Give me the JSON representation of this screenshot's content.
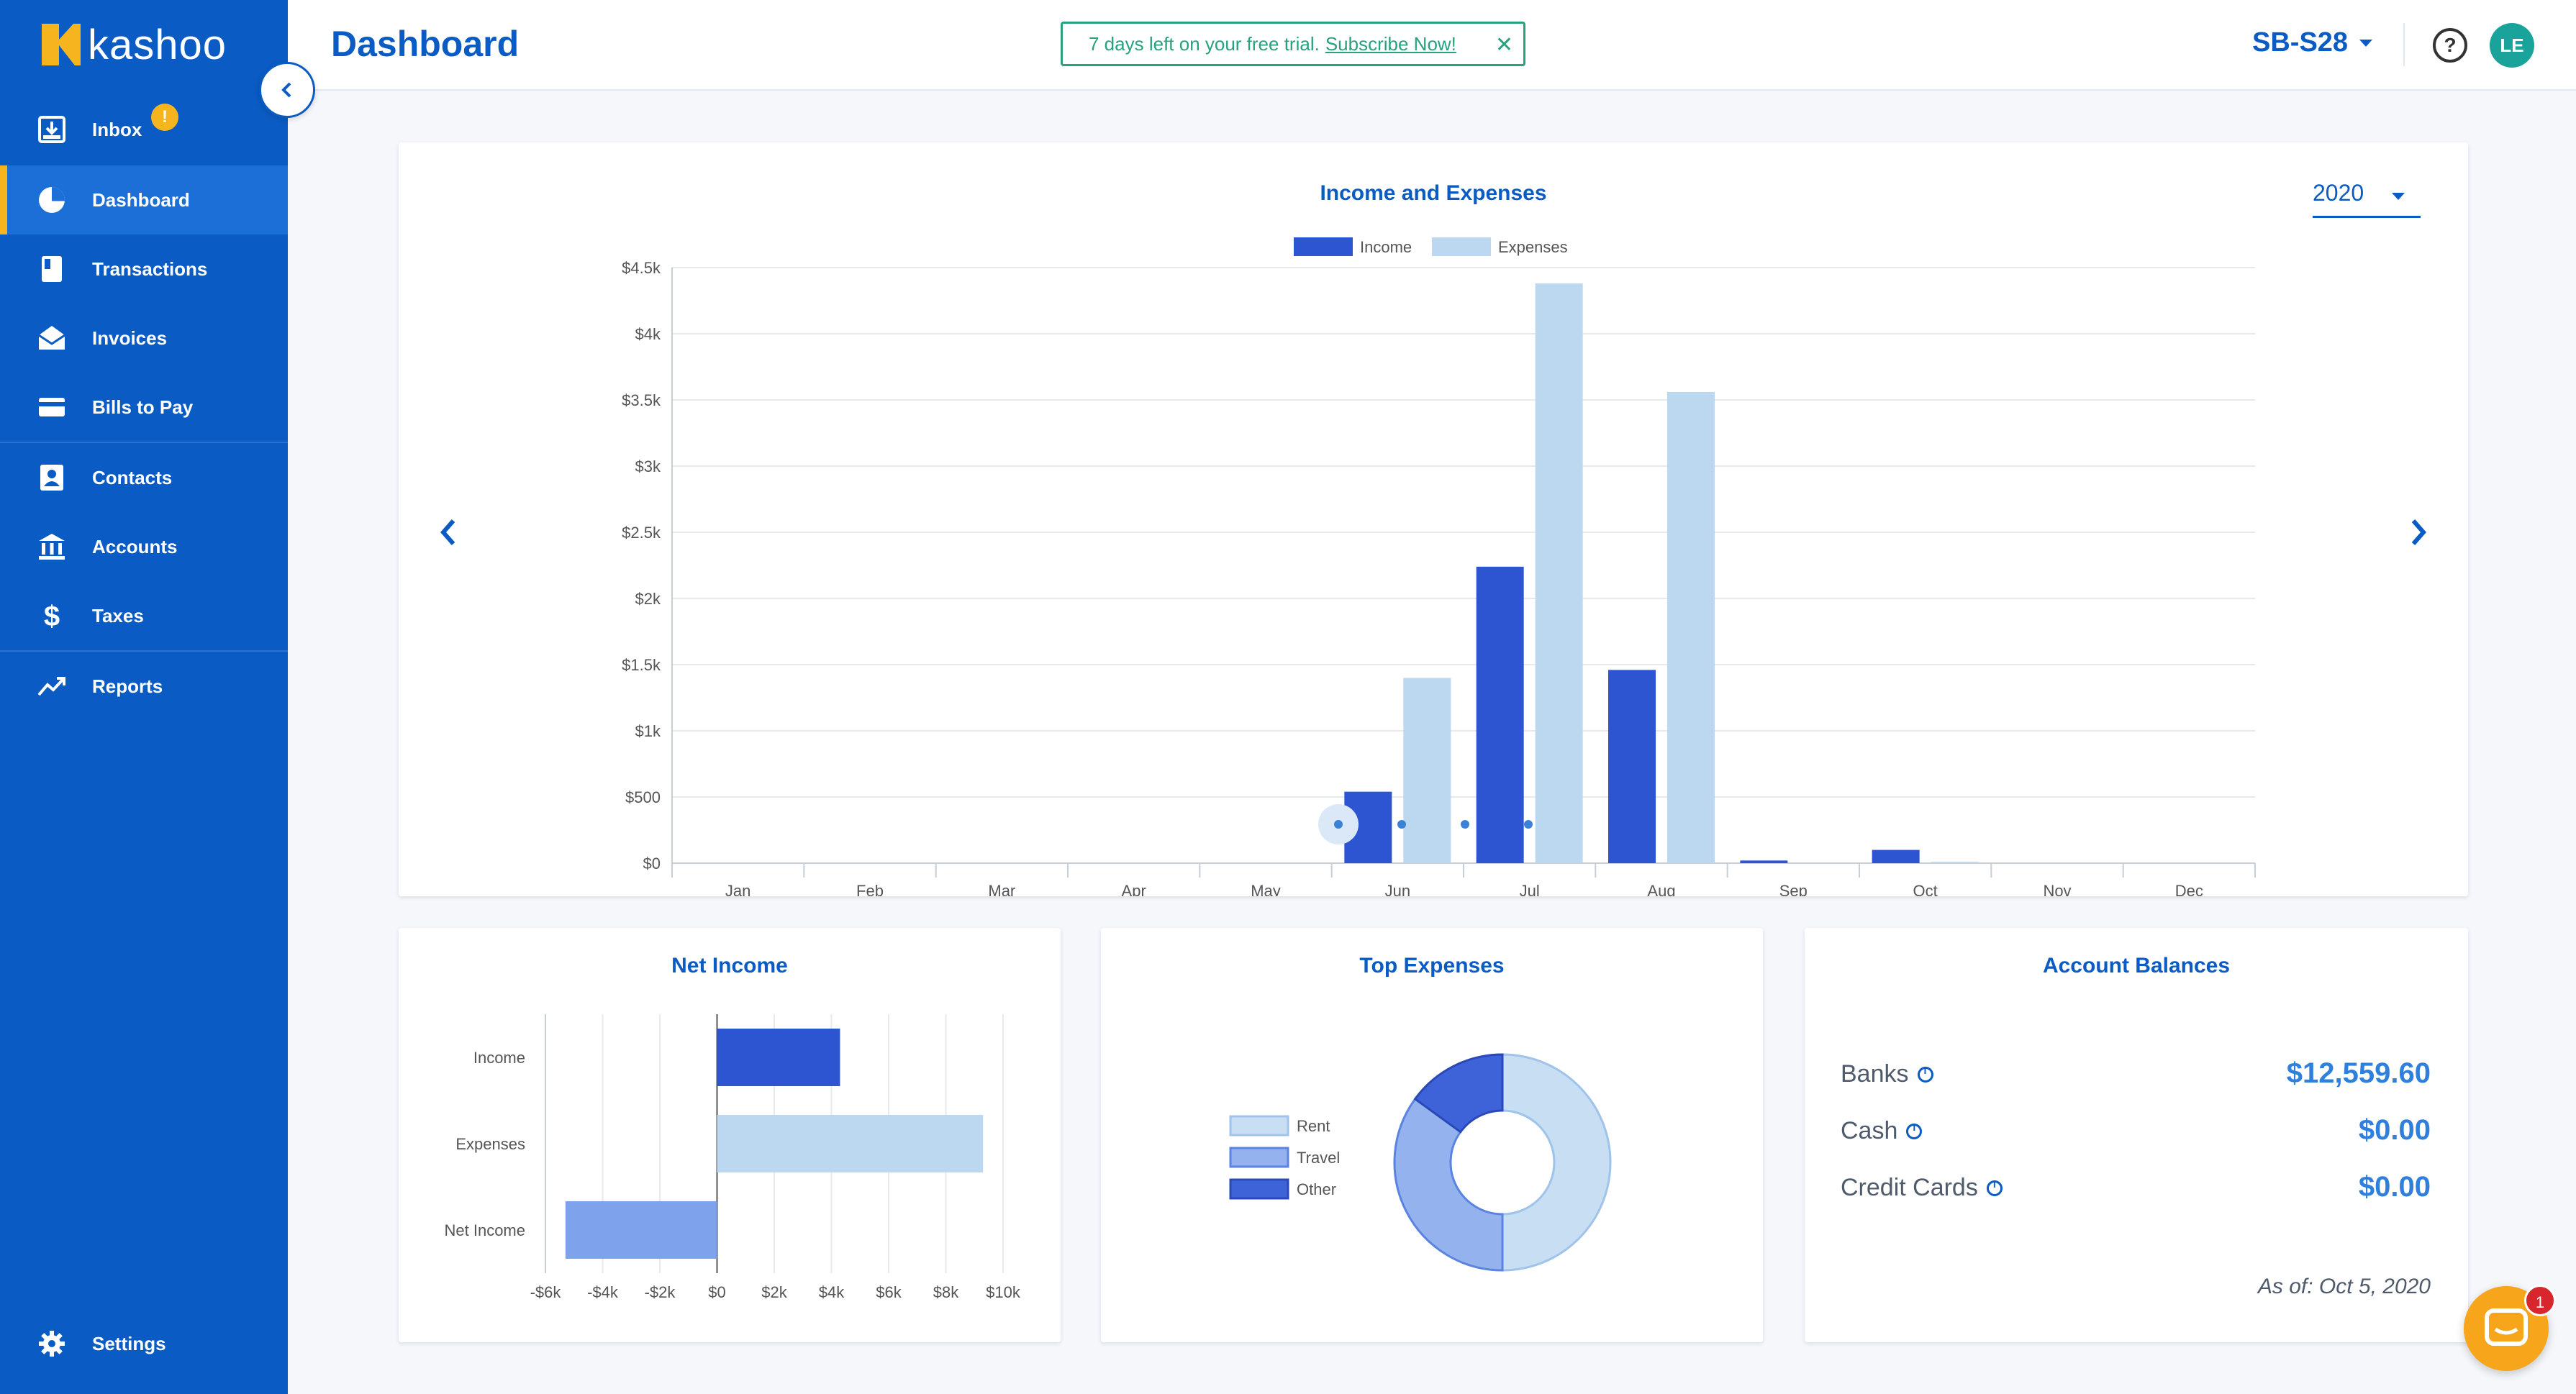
{
  "app": {
    "logo_text": "kashoo"
  },
  "sidebar": {
    "items": [
      {
        "label": "Inbox",
        "badge": "!"
      },
      {
        "label": "Dashboard"
      },
      {
        "label": "Transactions"
      },
      {
        "label": "Invoices"
      },
      {
        "label": "Bills to Pay"
      },
      {
        "label": "Contacts"
      },
      {
        "label": "Accounts"
      },
      {
        "label": "Taxes"
      },
      {
        "label": "Reports"
      }
    ],
    "settings_label": "Settings",
    "active": "Dashboard"
  },
  "header": {
    "title": "Dashboard",
    "trial_text": "7 days left on your free trial.",
    "trial_link": "Subscribe Now!",
    "company": "SB-S28",
    "avatar_initials": "LE"
  },
  "income_expenses": {
    "title": "Income and Expenses",
    "year": "2020",
    "carousel_pages": 4,
    "carousel_active": 1
  },
  "net_income": {
    "title": "Net Income"
  },
  "top_expenses": {
    "title": "Top Expenses"
  },
  "account_balances": {
    "title": "Account Balances",
    "rows": [
      {
        "label": "Banks",
        "value": "$12,559.60"
      },
      {
        "label": "Cash",
        "value": "$0.00"
      },
      {
        "label": "Credit Cards",
        "value": "$0.00"
      }
    ],
    "as_of": "As of: Oct 5, 2020"
  },
  "chat": {
    "badge": "1"
  },
  "colors": {
    "brand": "#0a5bc4",
    "accent": "#f6b51e",
    "income": "#2e55d1",
    "expenses": "#bcd7f0",
    "trial": "#27a17e"
  },
  "chart_data": [
    {
      "type": "bar",
      "title": "Income and Expenses",
      "categories": [
        "Jan",
        "Feb",
        "Mar",
        "Apr",
        "May",
        "Jun",
        "Jul",
        "Aug",
        "Sep",
        "Oct",
        "Nov",
        "Dec"
      ],
      "series": [
        {
          "name": "Income",
          "values": [
            0,
            0,
            0,
            0,
            0,
            540,
            2240,
            1460,
            20,
            100,
            0,
            0
          ]
        },
        {
          "name": "Expenses",
          "values": [
            0,
            0,
            0,
            0,
            0,
            1400,
            4380,
            3560,
            0,
            10,
            0,
            0
          ]
        }
      ],
      "ylim": [
        0,
        4500
      ],
      "yticks": [
        "$0",
        "$500",
        "$1k",
        "$1.5k",
        "$2k",
        "$2.5k",
        "$3k",
        "$3.5k",
        "$4k",
        "$4.5k"
      ],
      "legend": "top-center",
      "grid": true
    },
    {
      "type": "bar",
      "orientation": "horizontal",
      "title": "Net Income",
      "categories": [
        "Income",
        "Expenses",
        "Net Income"
      ],
      "values": [
        4300,
        9300,
        -5300
      ],
      "xlim": [
        -6000,
        10000
      ],
      "xticks": [
        "-$6k",
        "-$4k",
        "-$2k",
        "$0",
        "$2k",
        "$4k",
        "$6k",
        "$8k",
        "$10k"
      ],
      "grid": true
    },
    {
      "type": "pie",
      "title": "Top Expenses",
      "donut": true,
      "labels": [
        "Rent",
        "Travel",
        "Other"
      ],
      "values": [
        50,
        35,
        15
      ],
      "legend": "left"
    }
  ]
}
